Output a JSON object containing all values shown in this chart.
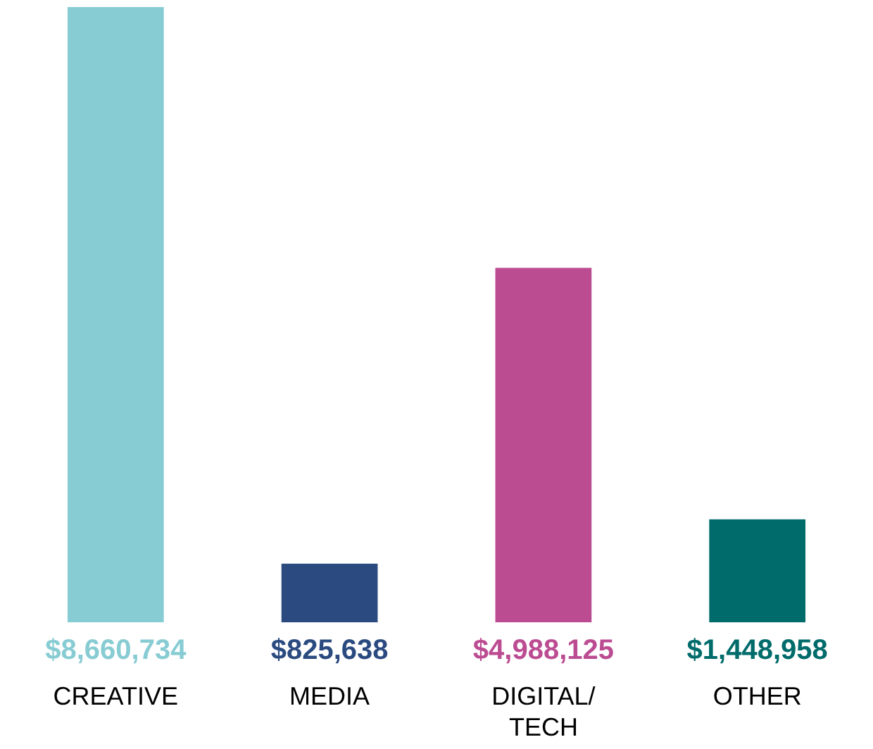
{
  "chart_data": {
    "type": "bar",
    "categories": [
      "CREATIVE",
      "MEDIA",
      "DIGITAL/ TECH",
      "OTHER"
    ],
    "values": [
      8660734,
      825638,
      4988125,
      1448958
    ],
    "colors": [
      "#88ccd3",
      "#2a4a80",
      "#bc4c92",
      "#006b6b"
    ],
    "value_labels": [
      "$8,660,734",
      "$825,638",
      "$4,988,125",
      "$1,448,958"
    ],
    "grid": false
  }
}
